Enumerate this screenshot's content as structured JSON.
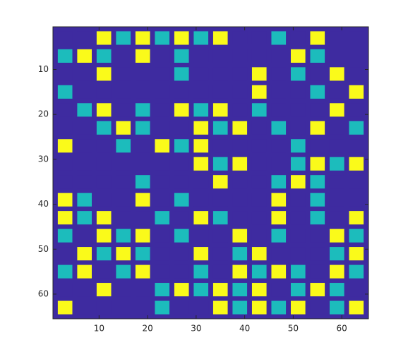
{
  "chart_data": {
    "type": "heatmap",
    "x": [
      3,
      7,
      11,
      15,
      19,
      23,
      27,
      31,
      35,
      39,
      43,
      47,
      51,
      55,
      59,
      63
    ],
    "y": [
      3,
      7,
      11,
      15,
      19,
      23,
      27,
      31,
      35,
      39,
      43,
      47,
      51,
      55,
      59,
      63
    ],
    "values": [
      [
        0,
        0,
        2,
        1,
        2,
        1,
        2,
        1,
        2,
        0,
        0,
        1,
        0,
        2,
        0,
        0
      ],
      [
        1,
        2,
        1,
        0,
        2,
        0,
        1,
        0,
        0,
        0,
        0,
        0,
        2,
        1,
        0,
        0
      ],
      [
        0,
        0,
        2,
        0,
        0,
        0,
        1,
        0,
        0,
        0,
        2,
        0,
        1,
        0,
        2,
        0
      ],
      [
        1,
        0,
        0,
        0,
        0,
        0,
        0,
        0,
        0,
        0,
        2,
        0,
        0,
        1,
        0,
        2
      ],
      [
        0,
        1,
        2,
        0,
        1,
        0,
        2,
        1,
        2,
        0,
        1,
        0,
        0,
        0,
        2,
        0
      ],
      [
        0,
        0,
        1,
        2,
        1,
        0,
        0,
        2,
        1,
        2,
        0,
        1,
        0,
        2,
        0,
        1
      ],
      [
        2,
        0,
        0,
        1,
        0,
        2,
        1,
        2,
        0,
        0,
        0,
        0,
        1,
        0,
        0,
        0
      ],
      [
        0,
        0,
        0,
        0,
        0,
        0,
        0,
        2,
        1,
        2,
        0,
        0,
        1,
        2,
        1,
        2
      ],
      [
        0,
        0,
        0,
        0,
        1,
        0,
        0,
        0,
        2,
        0,
        0,
        1,
        2,
        1,
        0,
        0
      ],
      [
        2,
        1,
        0,
        0,
        2,
        0,
        1,
        0,
        0,
        0,
        0,
        2,
        0,
        1,
        0,
        0
      ],
      [
        2,
        1,
        2,
        0,
        0,
        1,
        0,
        2,
        1,
        0,
        0,
        2,
        0,
        1,
        0,
        2
      ],
      [
        1,
        0,
        2,
        1,
        2,
        0,
        1,
        0,
        0,
        2,
        0,
        1,
        0,
        0,
        2,
        1
      ],
      [
        0,
        2,
        1,
        2,
        1,
        0,
        0,
        2,
        0,
        1,
        2,
        0,
        0,
        0,
        1,
        2
      ],
      [
        1,
        2,
        0,
        1,
        2,
        0,
        0,
        1,
        0,
        2,
        1,
        2,
        1,
        0,
        2,
        1
      ],
      [
        0,
        0,
        2,
        0,
        0,
        1,
        2,
        1,
        2,
        1,
        2,
        0,
        1,
        2,
        1,
        0
      ],
      [
        2,
        0,
        0,
        0,
        0,
        1,
        0,
        0,
        2,
        1,
        2,
        1,
        2,
        0,
        1,
        2
      ]
    ],
    "colormap": [
      "#3e2ba0",
      "#1cbcbc",
      "#fafa1a"
    ],
    "xlim": [
      0.5,
      65.5
    ],
    "ylim": [
      0.5,
      65.5
    ],
    "y_reversed": true,
    "xticks": [
      10,
      20,
      30,
      40,
      50,
      60
    ],
    "yticks": [
      10,
      20,
      30,
      40,
      50,
      60
    ]
  }
}
